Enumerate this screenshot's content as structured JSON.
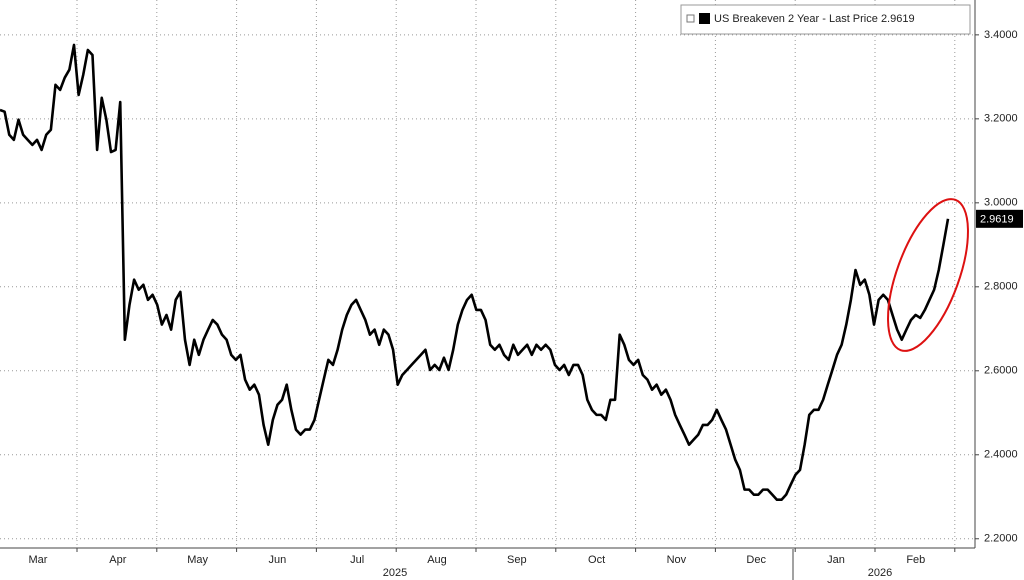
{
  "chart_data": {
    "type": "line",
    "series": [
      {
        "name": "US Breakeven 2 Year - Last Price",
        "color": "#000000",
        "values": [
          3.221,
          3.217,
          3.162,
          3.15,
          3.198,
          3.162,
          3.15,
          3.138,
          3.15,
          3.126,
          3.162,
          3.174,
          3.281,
          3.269,
          3.298,
          3.317,
          3.376,
          3.257,
          3.305,
          3.364,
          3.352,
          3.126,
          3.25,
          3.198,
          3.121,
          3.126,
          3.24,
          2.674,
          2.757,
          2.817,
          2.793,
          2.805,
          2.769,
          2.781,
          2.757,
          2.71,
          2.733,
          2.698,
          2.769,
          2.788,
          2.674,
          2.614,
          2.674,
          2.638,
          2.674,
          2.698,
          2.721,
          2.71,
          2.686,
          2.674,
          2.638,
          2.626,
          2.638,
          2.579,
          2.555,
          2.567,
          2.543,
          2.471,
          2.424,
          2.483,
          2.519,
          2.531,
          2.567,
          2.507,
          2.46,
          2.448,
          2.46,
          2.46,
          2.483,
          2.531,
          2.579,
          2.626,
          2.614,
          2.65,
          2.698,
          2.733,
          2.757,
          2.769,
          2.745,
          2.721,
          2.686,
          2.698,
          2.662,
          2.698,
          2.686,
          2.65,
          2.567,
          2.59,
          2.602,
          2.614,
          2.626,
          2.638,
          2.65,
          2.602,
          2.614,
          2.602,
          2.631,
          2.602,
          2.65,
          2.71,
          2.745,
          2.769,
          2.781,
          2.745,
          2.745,
          2.721,
          2.662,
          2.65,
          2.662,
          2.638,
          2.626,
          2.662,
          2.638,
          2.65,
          2.662,
          2.638,
          2.662,
          2.65,
          2.662,
          2.65,
          2.614,
          2.602,
          2.614,
          2.59,
          2.614,
          2.614,
          2.59,
          2.531,
          2.507,
          2.495,
          2.495,
          2.483,
          2.531,
          2.531,
          2.686,
          2.662,
          2.626,
          2.614,
          2.626,
          2.59,
          2.579,
          2.555,
          2.567,
          2.543,
          2.555,
          2.531,
          2.495,
          2.471,
          2.448,
          2.424,
          2.436,
          2.448,
          2.471,
          2.471,
          2.483,
          2.507,
          2.483,
          2.46,
          2.424,
          2.388,
          2.364,
          2.317,
          2.317,
          2.305,
          2.305,
          2.317,
          2.317,
          2.305,
          2.293,
          2.293,
          2.305,
          2.329,
          2.352,
          2.364,
          2.424,
          2.495,
          2.507,
          2.507,
          2.531,
          2.567,
          2.602,
          2.638,
          2.662,
          2.71,
          2.769,
          2.84,
          2.805,
          2.817,
          2.781,
          2.71,
          2.769,
          2.781,
          2.769,
          2.733,
          2.698,
          2.674,
          2.698,
          2.721,
          2.733,
          2.726,
          2.745,
          2.769,
          2.793,
          2.84,
          2.9,
          2.9619
        ]
      }
    ],
    "x_month_labels": [
      "Mar",
      "Apr",
      "May",
      "Jun",
      "Jul",
      "Aug",
      "Sep",
      "Oct",
      "Nov",
      "Dec",
      "Jan",
      "Feb"
    ],
    "x_year_labels": [
      "2025",
      "2026"
    ],
    "ylim": [
      2.178,
      3.483
    ],
    "yticks": [
      {
        "value": 2.2,
        "label": "2.2000"
      },
      {
        "value": 2.4,
        "label": "2.4000"
      },
      {
        "value": 2.6,
        "label": "2.6000"
      },
      {
        "value": 2.8,
        "label": "2.8000"
      },
      {
        "value": 3.0,
        "label": "3.0000"
      },
      {
        "value": 3.2,
        "label": "3.2000"
      },
      {
        "value": 3.4,
        "label": "3.4000"
      }
    ],
    "grid": true,
    "legend": "top-right"
  }
}
